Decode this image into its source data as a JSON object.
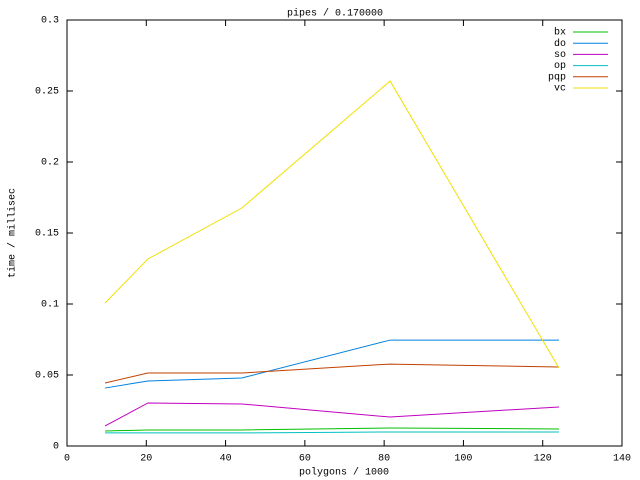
{
  "chart_data": {
    "type": "line",
    "title": "pipes / 0.170000",
    "x_label": "polygons / 1000",
    "y_label": "time / millisec",
    "x": [
      9.6,
      20.4,
      44.1,
      81.5,
      124.1
    ],
    "series": [
      {
        "name": "bx",
        "color": "#00c000",
        "values": [
          0.0106,
          0.0113,
          0.0113,
          0.0127,
          0.012
        ]
      },
      {
        "name": "do",
        "color": "#0080e0",
        "values": [
          0.0408,
          0.0458,
          0.0479,
          0.0746,
          0.0746
        ]
      },
      {
        "name": "so",
        "color": "#c000c0",
        "values": [
          0.0141,
          0.0303,
          0.0296,
          0.0204,
          0.0275
        ]
      },
      {
        "name": "op",
        "color": "#00c0c0",
        "values": [
          0.0092,
          0.0092,
          0.0092,
          0.0099,
          0.0099
        ]
      },
      {
        "name": "pqp",
        "color": "#c04000",
        "values": [
          0.0444,
          0.0514,
          0.0514,
          0.0577,
          0.0556
        ]
      },
      {
        "name": "vc",
        "color": "#f0e000",
        "values": [
          0.1007,
          0.1317,
          0.1676,
          0.257,
          0.0549
        ]
      }
    ],
    "xlim": [
      0,
      140
    ],
    "xticks": [
      0,
      20,
      40,
      60,
      80,
      100,
      120,
      140
    ],
    "ylim": [
      0,
      0.3
    ],
    "yticks": [
      0,
      0.05,
      0.1,
      0.15,
      0.2,
      0.25,
      0.3
    ],
    "legend": "top-right"
  }
}
